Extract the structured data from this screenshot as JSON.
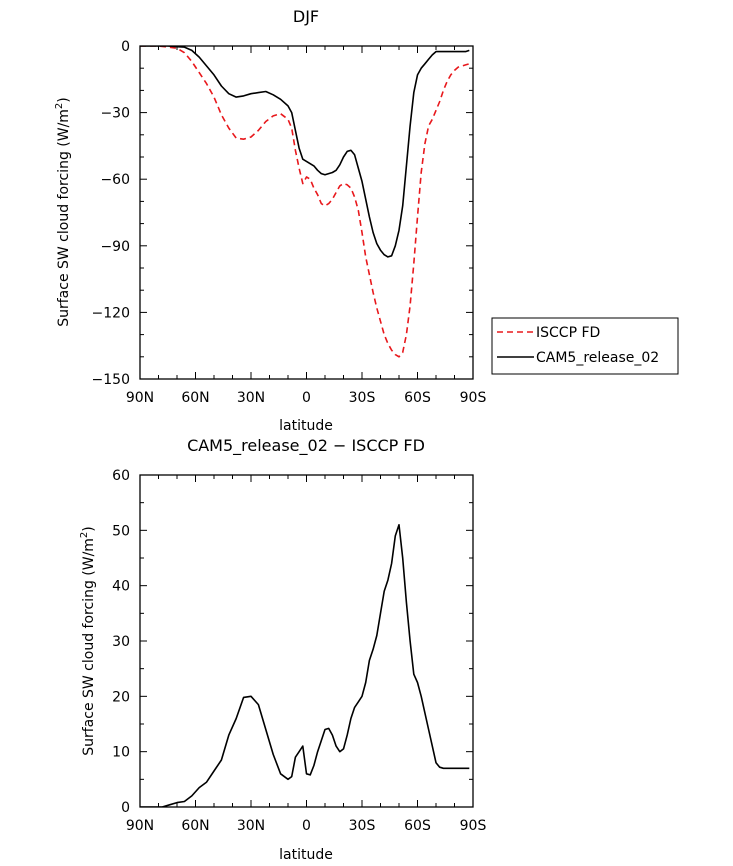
{
  "chart_data": [
    {
      "type": "line",
      "title": "DJF",
      "xlabel": "latitude",
      "ylabel_main": "Surface SW cloud forcing (W/m",
      "ylabel_sup": "2",
      "ylabel_end": ")",
      "xlim": [
        90,
        -90
      ],
      "ylim": [
        -150,
        0
      ],
      "xticks": [
        {
          "value": 90,
          "label": "90N"
        },
        {
          "value": 60,
          "label": "60N"
        },
        {
          "value": 30,
          "label": "30N"
        },
        {
          "value": 0,
          "label": "0"
        },
        {
          "value": -30,
          "label": "30S"
        },
        {
          "value": -60,
          "label": "60S"
        },
        {
          "value": -90,
          "label": "90S"
        }
      ],
      "yticks": [
        {
          "value": 0,
          "label": "0"
        },
        {
          "value": -30,
          "label": "−30"
        },
        {
          "value": -60,
          "label": "−60"
        },
        {
          "value": -90,
          "label": "−90"
        },
        {
          "value": -120,
          "label": "−120"
        },
        {
          "value": -150,
          "label": "−150"
        }
      ],
      "legend_position": "outside-right",
      "series": [
        {
          "name": "ISCCP FD",
          "color": "#e8181c",
          "dash": true,
          "x": [
            90,
            85,
            80,
            75,
            70,
            66,
            62,
            58,
            54,
            50,
            46,
            42,
            38,
            34,
            30,
            26,
            22,
            18,
            14,
            10,
            8,
            6,
            4,
            2,
            0,
            -2,
            -4,
            -6,
            -8,
            -10,
            -12,
            -14,
            -16,
            -18,
            -20,
            -22,
            -24,
            -26,
            -28,
            -30,
            -32,
            -34,
            -36,
            -38,
            -40,
            -42,
            -44,
            -46,
            -48,
            -50,
            -52,
            -54,
            -56,
            -58,
            -60,
            -62,
            -64,
            -66,
            -68,
            -70,
            -72,
            -74,
            -76,
            -78,
            -80,
            -82,
            -84,
            -86,
            -88
          ],
          "values": [
            0,
            0,
            0,
            -0.5,
            -1,
            -3,
            -7,
            -12,
            -17,
            -23,
            -31,
            -37,
            -41.5,
            -42,
            -41,
            -38,
            -34,
            -31.5,
            -30.5,
            -33,
            -37,
            -47,
            -55,
            -62,
            -59,
            -60,
            -64,
            -67,
            -71,
            -72,
            -71,
            -69,
            -66,
            -63,
            -62,
            -62.5,
            -64,
            -68,
            -74,
            -84,
            -95,
            -103,
            -111,
            -118,
            -124,
            -130,
            -134,
            -137,
            -139,
            -140,
            -138,
            -130,
            -117,
            -98,
            -77,
            -57,
            -44,
            -36,
            -33,
            -29,
            -25,
            -20,
            -16,
            -13,
            -11,
            -9.5,
            -9,
            -8.5,
            -8
          ]
        },
        {
          "name": "CAM5_release_02",
          "color": "#000000",
          "dash": false,
          "x": [
            90,
            85,
            80,
            75,
            70,
            66,
            62,
            58,
            54,
            50,
            46,
            42,
            38,
            34,
            30,
            26,
            22,
            18,
            14,
            10,
            8,
            6,
            4,
            2,
            0,
            -2,
            -4,
            -6,
            -8,
            -10,
            -12,
            -14,
            -16,
            -18,
            -20,
            -22,
            -24,
            -26,
            -28,
            -30,
            -32,
            -34,
            -36,
            -38,
            -40,
            -42,
            -44,
            -46,
            -48,
            -50,
            -52,
            -54,
            -56,
            -58,
            -60,
            -62,
            -64,
            -66,
            -68,
            -70,
            -72,
            -74,
            -76,
            -78,
            -80,
            -82,
            -84,
            -86,
            -88
          ],
          "values": [
            0,
            0,
            0,
            0,
            -0.3,
            -0.5,
            -2,
            -5,
            -9,
            -13,
            -18,
            -21.5,
            -23,
            -22.5,
            -21.5,
            -21,
            -20.5,
            -22,
            -24,
            -27,
            -30,
            -38,
            -46,
            -51,
            -52,
            -53,
            -54,
            -56,
            -57.5,
            -58,
            -57.5,
            -57,
            -56,
            -53.5,
            -50,
            -47.5,
            -47,
            -49,
            -55,
            -61,
            -69,
            -77,
            -84,
            -89,
            -92,
            -94,
            -95,
            -94.5,
            -90,
            -83,
            -72,
            -54,
            -36,
            -21,
            -13,
            -10,
            -8,
            -6,
            -4,
            -2.5,
            -2.5,
            -2.5,
            -2.5,
            -2.5,
            -2.5,
            -2.5,
            -2.5,
            -2.5,
            -2
          ]
        }
      ]
    },
    {
      "type": "line",
      "title": "CAM5_release_02 − ISCCP FD",
      "xlabel": "latitude",
      "ylabel_main": "Surface SW cloud forcing (W/m",
      "ylabel_sup": "2",
      "ylabel_end": ")",
      "xlim": [
        90,
        -90
      ],
      "ylim": [
        0,
        60
      ],
      "xticks": [
        {
          "value": 90,
          "label": "90N"
        },
        {
          "value": 60,
          "label": "60N"
        },
        {
          "value": 30,
          "label": "30N"
        },
        {
          "value": 0,
          "label": "0"
        },
        {
          "value": -30,
          "label": "30S"
        },
        {
          "value": -60,
          "label": "60S"
        },
        {
          "value": -90,
          "label": "90S"
        }
      ],
      "yticks": [
        {
          "value": 0,
          "label": "0"
        },
        {
          "value": 10,
          "label": "10"
        },
        {
          "value": 20,
          "label": "20"
        },
        {
          "value": 30,
          "label": "30"
        },
        {
          "value": 40,
          "label": "40"
        },
        {
          "value": 50,
          "label": "50"
        },
        {
          "value": 60,
          "label": "60"
        }
      ],
      "series": [
        {
          "name": "CAM5_release_02 − ISCCP FD",
          "color": "#000000",
          "dash": false,
          "x": [
            90,
            84,
            78,
            74,
            70,
            66,
            62,
            58,
            54,
            50,
            46,
            42,
            38,
            34,
            30,
            26,
            22,
            18,
            14,
            10,
            8,
            6,
            4,
            2,
            0,
            -2,
            -4,
            -6,
            -8,
            -10,
            -12,
            -14,
            -16,
            -18,
            -20,
            -22,
            -24,
            -26,
            -28,
            -30,
            -32,
            -34,
            -36,
            -38,
            -40,
            -42,
            -44,
            -46,
            -48,
            -50,
            -52,
            -54,
            -56,
            -58,
            -60,
            -62,
            -64,
            -66,
            -68,
            -70,
            -72,
            -74,
            -76,
            -78,
            -80,
            -82,
            -84,
            -86,
            -88
          ],
          "values": [
            0,
            0,
            0,
            0.4,
            0.8,
            1,
            2,
            3.5,
            4.5,
            6.5,
            8.5,
            13,
            16,
            19.8,
            20,
            18.5,
            14,
            9.5,
            6,
            5,
            5.5,
            9,
            10,
            11,
            6,
            5.8,
            7.5,
            10,
            12,
            14,
            14.2,
            13,
            11,
            10,
            10.5,
            13,
            16,
            18,
            19,
            20,
            22.5,
            26.5,
            28.5,
            31,
            35,
            39,
            41,
            44,
            49,
            51,
            45,
            37,
            30,
            24,
            22.5,
            20,
            17,
            14,
            11,
            8,
            7.2,
            7,
            7,
            7,
            7,
            7,
            7,
            7,
            7
          ]
        }
      ]
    }
  ]
}
